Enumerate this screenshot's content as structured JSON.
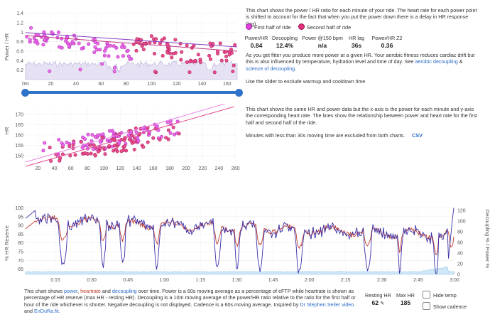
{
  "chart1": {
    "yaxis_label": "Power / HR",
    "y_ticks": [
      "1.4",
      "1.2",
      "1",
      "0.8",
      "0.6",
      "0.4",
      "0.2"
    ],
    "x_ticks": [
      "0m",
      "20",
      "40",
      "60",
      "80",
      "100",
      "120",
      "140",
      "160"
    ]
  },
  "chart2": {
    "yaxis_label": "HR",
    "y_ticks": [
      "170",
      "165",
      "160",
      "155",
      "150"
    ],
    "x_ticks": [
      "20",
      "40",
      "60",
      "80",
      "100",
      "120",
      "140",
      "160",
      "180",
      "200",
      "220",
      "240",
      "260"
    ]
  },
  "chart3": {
    "left_axis_label": "% HR Reserve",
    "right_axis_label": "Decoupling % / Power %",
    "y_ticks_left": [
      "100",
      "95",
      "90",
      "85",
      "80",
      "75",
      "70",
      "65"
    ],
    "y_ticks_right": [
      "120",
      "100",
      "80",
      "60",
      "40",
      "20",
      "0"
    ],
    "x_ticks": [
      "0:15",
      "0:30",
      "0:45",
      "1:00",
      "1:15",
      "1:30",
      "1:45",
      "2:00",
      "2:15",
      "2:30",
      "2:45",
      "3:00"
    ]
  },
  "desc1": "This chart shows the power / HR ratio for each minute of your ride. The heart rate for each power point is shifted to account for the fact that when you put the power down there is a delay in HR response (lag).",
  "legend": {
    "first": "First half of ride",
    "second": "Second half of ride",
    "first_color": "#e040e0",
    "second_color": "#e0307a"
  },
  "metrics": [
    {
      "label": "Power/HR",
      "value": "0.84"
    },
    {
      "label": "Decoupling",
      "value": "12.4%"
    },
    {
      "label": "Power @150 bpm",
      "value": "n/a"
    },
    {
      "label": "HR lag",
      "value": "36s"
    },
    {
      "label": "Power/HR Z2",
      "value": "0.36"
    }
  ],
  "fitness_text_1": "As you get fitter you produce more power at a given HR. Your aerobic fitness reduces cardiac drift but this is also influenced by temperature, hydration level and time of day. See",
  "fitness_link_1": "aerobic decoupling",
  "fitness_amp": "&",
  "fitness_link_2": "science of decoupling",
  "fitness_end": ".",
  "slider_text": "Use the slider to exclude warmup and cooldown time",
  "desc2": "This chart shows the same HR and power data but the x-axis is the power for each minute and y-axis the corresponding heart rate. The lines show the relationship between power and heart rate for the first half and second half of the ride.",
  "minutes_text": "Minutes with less than 30s moving time are excluded from both charts.",
  "csv_label": "CSV",
  "bottom": {
    "t1": "This chart shows",
    "power": "power",
    "heartrate": "heartrate",
    "and": "and",
    "decoupling": "decoupling",
    "t2": "over time. Power is a 60s moving average as a percentage of eFTP while heartrate is shown as percentage of HR reserve (max HR - resting HR). Decoupling is a 10m moving average of the power/HR ratio relative to the ratio for the first half or hour of the ride whichever is shorter. Negative decoupling is not displayed. Cadence is a 60s moving average. Inspired by",
    "link1": "Dr Stephen Seiler video",
    "and2": "and",
    "link2": "EnDuRa.fit",
    "dot": ".",
    "power_color": "#2a6cc7",
    "heartrate_color": "#c0392b",
    "decoupling_color": "#2a6cc7"
  },
  "resting_hr": {
    "label": "Resting HR",
    "value": "62"
  },
  "max_hr": {
    "label": "Max HR",
    "value": "185"
  },
  "hide_temp": "Hide temp",
  "show_cadence": "Show cadence",
  "edit_icon": "pencil-icon"
}
